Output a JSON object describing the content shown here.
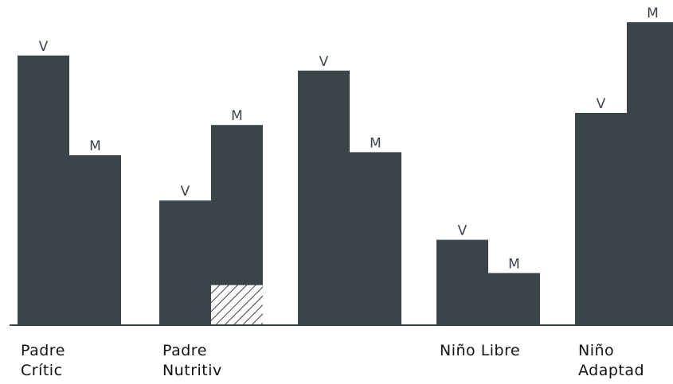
{
  "chart_data": {
    "type": "bar",
    "categories": [
      [
        "Padre",
        "Crític"
      ],
      [
        "Padre",
        "Nutritiv"
      ],
      [],
      [
        "Niño Libre"
      ],
      [
        "Niño",
        "Adaptad"
      ]
    ],
    "series": [
      {
        "name": "V",
        "values": [
          89,
          41,
          84,
          28,
          70
        ]
      },
      {
        "name": "M",
        "values": [
          56,
          66,
          57,
          17,
          100
        ]
      }
    ],
    "hatched_segment": {
      "category_index": 1,
      "series": "M",
      "value": 13
    },
    "ylim": [
      0,
      100
    ],
    "legend": "none",
    "grid": false
  }
}
